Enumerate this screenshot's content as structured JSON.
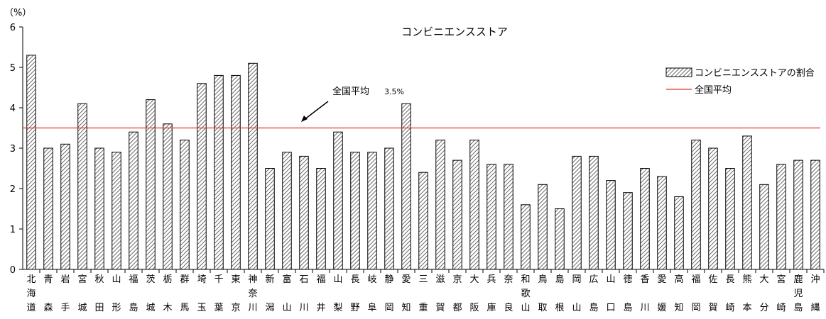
{
  "chart_data": {
    "type": "bar",
    "title": "コンビニエンスストア",
    "ylabel": "（%）",
    "ylim": [
      0,
      6
    ],
    "yticks": [
      0,
      1,
      2,
      3,
      4,
      5,
      6
    ],
    "grid": false,
    "legend_position": "top-right",
    "categories": [
      "北海道",
      "青森",
      "岩手",
      "宮城",
      "秋田",
      "山形",
      "福島",
      "茨城",
      "栃木",
      "群馬",
      "埼玉",
      "千葉",
      "東京",
      "神奈川",
      "新潟",
      "富山",
      "石川",
      "福井",
      "山梨",
      "長野",
      "岐阜",
      "静岡",
      "愛知",
      "三重",
      "滋賀",
      "京都",
      "大阪",
      "兵庫",
      "奈良",
      "和歌山",
      "鳥取",
      "島根",
      "岡山",
      "広島",
      "山口",
      "徳島",
      "香川",
      "愛媛",
      "高知",
      "福岡",
      "佐賀",
      "長崎",
      "熊本",
      "大分",
      "宮崎",
      "鹿児島",
      "沖縄"
    ],
    "series": [
      {
        "name": "コンビニエンスストアの割合",
        "values": [
          5.3,
          3.0,
          3.1,
          4.1,
          3.0,
          2.9,
          3.4,
          4.2,
          3.6,
          3.2,
          4.6,
          4.8,
          4.8,
          5.1,
          2.5,
          2.9,
          2.8,
          2.5,
          3.4,
          2.9,
          2.9,
          3.0,
          4.1,
          2.4,
          3.2,
          2.7,
          3.2,
          2.6,
          2.6,
          1.6,
          2.1,
          1.5,
          2.8,
          2.8,
          2.2,
          1.9,
          2.5,
          2.3,
          1.8,
          3.2,
          3.0,
          2.5,
          3.3,
          2.1,
          2.6,
          2.7,
          2.7
        ]
      }
    ],
    "reference_line": {
      "name": "全国平均",
      "value": 3.5,
      "color": "#e8322b"
    },
    "annotation": {
      "label": "全国平均",
      "value_text": "3.5%"
    }
  }
}
